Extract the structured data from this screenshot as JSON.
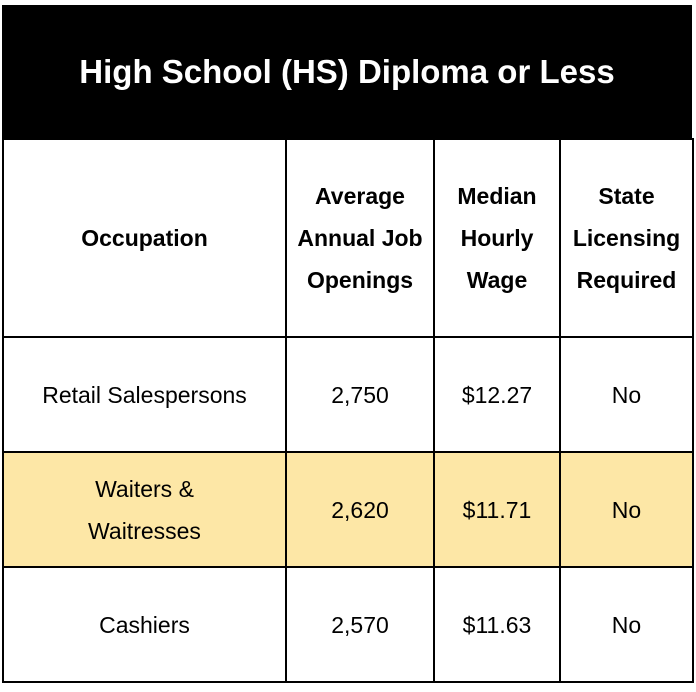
{
  "header": {
    "title": "High School (HS) Diploma or Less"
  },
  "table": {
    "columns": [
      "Occupation",
      "Average Annual Job Openings",
      "Median Hourly Wage",
      "State Licensing Required"
    ],
    "rows": [
      [
        "Retail Salespersons",
        "2,750",
        "$12.27",
        "No"
      ],
      [
        "Waiters & Waitresses",
        "2,620",
        "$11.71",
        "No"
      ],
      [
        "Cashiers",
        "2,570",
        "$11.63",
        "No"
      ]
    ]
  }
}
